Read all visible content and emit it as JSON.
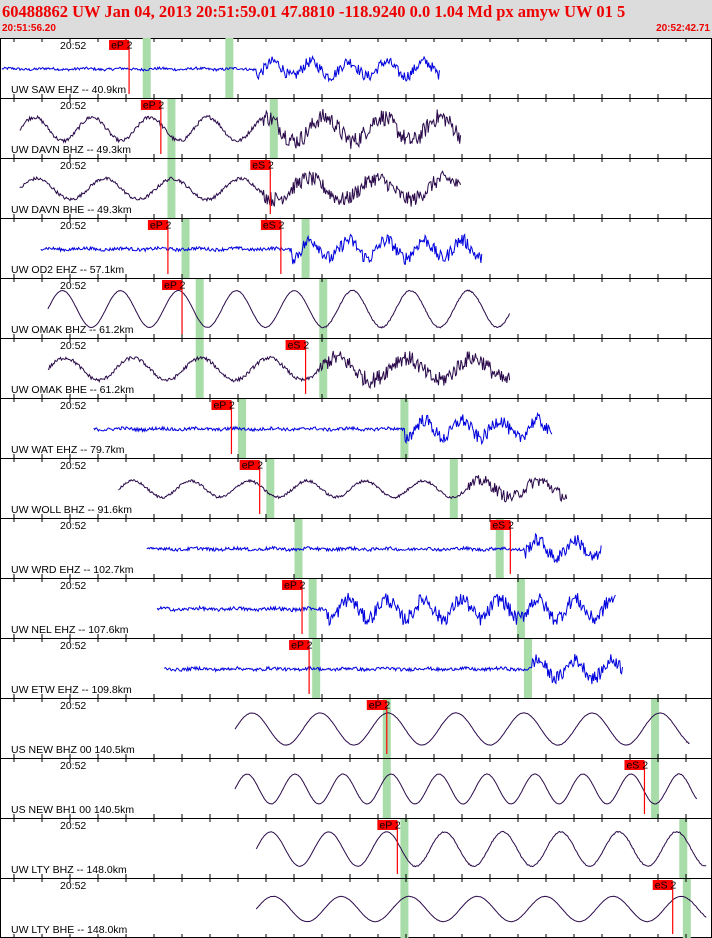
{
  "header": {
    "title": "60488862 UW Jan 04, 2013 20:51:59.01   47.8810 -118.9240  0.0 1.04 Md px amyw UW 01   5",
    "start_time": "20:51:56.20",
    "end_time": "20:52:42.71"
  },
  "colors": {
    "header_bg": "#dcdcdc",
    "header_text": "#ee0000",
    "blue_trace": "#0000dd",
    "purple_trace": "#2a0a4a",
    "pick_box": "#ff0000",
    "pick_text": "#000000",
    "window_shade": "#a8dca8"
  },
  "chart_data": {
    "type": "line",
    "time_axis": {
      "start": "20:51:56.20",
      "end": "20:52:42.71",
      "minute_label": "20:52"
    },
    "traces": [
      {
        "label": "UW SAW EHZ -- 40.9km",
        "minute_label": "20:52",
        "color": "blue",
        "picks": [
          {
            "label": "eP 2",
            "t": 0.18
          }
        ],
        "shades": [
          0.205,
          0.322
        ],
        "signal": [
          0.0,
          0.62
        ],
        "amp": 0.45,
        "event": 0.36,
        "kind": "hf"
      },
      {
        "label": "UW DAVN BHZ -- 49.3km",
        "minute_label": "20:52",
        "color": "purple",
        "picks": [
          {
            "label": "eP 2",
            "t": 0.225
          }
        ],
        "shades": [
          0.24,
          0.385
        ],
        "signal": [
          0.025,
          0.65
        ],
        "amp": 0.8,
        "event": 0.37,
        "kind": "mixed"
      },
      {
        "label": "UW DAVN BHE -- 49.3km",
        "minute_label": "20:52",
        "color": "purple",
        "picks": [
          {
            "label": "eS 2",
            "t": 0.38
          }
        ],
        "shades": [
          0.24
        ],
        "signal": [
          0.025,
          0.65
        ],
        "amp": 0.7,
        "event": 0.37,
        "kind": "mixed"
      },
      {
        "label": "UW OD2 EHZ -- 57.1km",
        "minute_label": "20:52",
        "color": "blue",
        "picks": [
          {
            "label": "eP 2",
            "t": 0.235
          },
          {
            "label": "eS 2",
            "t": 0.395
          }
        ],
        "shades": [
          0.26,
          0.43
        ],
        "signal": [
          0.055,
          0.68
        ],
        "amp": 0.55,
        "event": 0.41,
        "kind": "hf"
      },
      {
        "label": "UW OMAK BHZ -- 61.2km",
        "minute_label": "20:52",
        "color": "purple",
        "picks": [
          {
            "label": "eP 2",
            "t": 0.255
          }
        ],
        "shades": [
          0.28,
          0.455
        ],
        "signal": [
          0.065,
          0.72
        ],
        "amp": 0.8,
        "event": 0.45,
        "kind": "lp"
      },
      {
        "label": "UW OMAK BHE -- 61.2km",
        "minute_label": "20:52",
        "color": "purple",
        "picks": [
          {
            "label": "eS 2",
            "t": 0.43
          }
        ],
        "shades": [
          0.28,
          0.455
        ],
        "signal": [
          0.065,
          0.72
        ],
        "amp": 0.75,
        "event": 0.45,
        "kind": "mixed"
      },
      {
        "label": "UW WAT EHZ -- 79.7km",
        "minute_label": "20:52",
        "color": "blue",
        "picks": [
          {
            "label": "eP 2",
            "t": 0.325
          }
        ],
        "shades": [
          0.34,
          0.57
        ],
        "signal": [
          0.13,
          0.78
        ],
        "amp": 0.55,
        "event": 0.57,
        "kind": "hf"
      },
      {
        "label": "UW WOLL BHZ -- 91.6km",
        "minute_label": "20:52",
        "color": "purple",
        "picks": [
          {
            "label": "eP 2",
            "t": 0.365
          }
        ],
        "shades": [
          0.38,
          0.64
        ],
        "signal": [
          0.165,
          0.8
        ],
        "amp": 0.55,
        "event": 0.66,
        "kind": "mixed"
      },
      {
        "label": "UW WRD EHZ -- 102.7km",
        "minute_label": "20:52",
        "color": "blue",
        "picks": [
          {
            "label": "eS 2",
            "t": 0.72
          }
        ],
        "shades": [
          0.42,
          0.705
        ],
        "signal": [
          0.205,
          0.85
        ],
        "amp": 0.55,
        "event": 0.74,
        "kind": "hf"
      },
      {
        "label": "UW NEL EHZ -- 107.6km",
        "minute_label": "20:52",
        "color": "blue",
        "picks": [
          {
            "label": "eP 2",
            "t": 0.425
          }
        ],
        "shades": [
          0.44,
          0.735
        ],
        "signal": [
          0.22,
          0.87
        ],
        "amp": 0.6,
        "event": 0.46,
        "kind": "hf"
      },
      {
        "label": "UW ETW EHZ -- 109.8km",
        "minute_label": "20:52",
        "color": "blue",
        "picks": [
          {
            "label": "eP 2",
            "t": 0.435
          }
        ],
        "shades": [
          0.445,
          0.745
        ],
        "signal": [
          0.23,
          0.88
        ],
        "amp": 0.55,
        "event": 0.75,
        "kind": "hf"
      },
      {
        "label": "US NEW BHZ 00 140.5km",
        "minute_label": "20:52",
        "color": "purple",
        "picks": [
          {
            "label": "eP 2",
            "t": 0.545
          }
        ],
        "shades": [
          0.545,
          0.925
        ],
        "signal": [
          0.33,
          0.975
        ],
        "amp": 0.7,
        "event": 0.96,
        "kind": "lp"
      },
      {
        "label": "US NEW BH1 00 140.5km",
        "minute_label": "20:52",
        "color": "purple",
        "picks": [
          {
            "label": "eS 2",
            "t": 0.91
          }
        ],
        "shades": [
          0.545,
          0.925
        ],
        "signal": [
          0.33,
          0.985
        ],
        "amp": 0.65,
        "event": 0.94,
        "kind": "lp"
      },
      {
        "label": "UW LTY BHZ -- 148.0km",
        "minute_label": "20:52",
        "color": "purple",
        "picks": [
          {
            "label": "eP 2",
            "t": 0.56
          }
        ],
        "shades": [
          0.57,
          0.965
        ],
        "signal": [
          0.36,
          0.998
        ],
        "amp": 0.75,
        "event": 0.58,
        "kind": "lp"
      },
      {
        "label": "UW LTY BHE -- 148.0km",
        "minute_label": "20:52",
        "color": "purple",
        "picks": [
          {
            "label": "eS 2",
            "t": 0.95
          }
        ],
        "shades": [
          0.57,
          0.97
        ],
        "signal": [
          0.36,
          0.998
        ],
        "amp": 0.55,
        "event": 0.97,
        "kind": "lp"
      }
    ]
  }
}
